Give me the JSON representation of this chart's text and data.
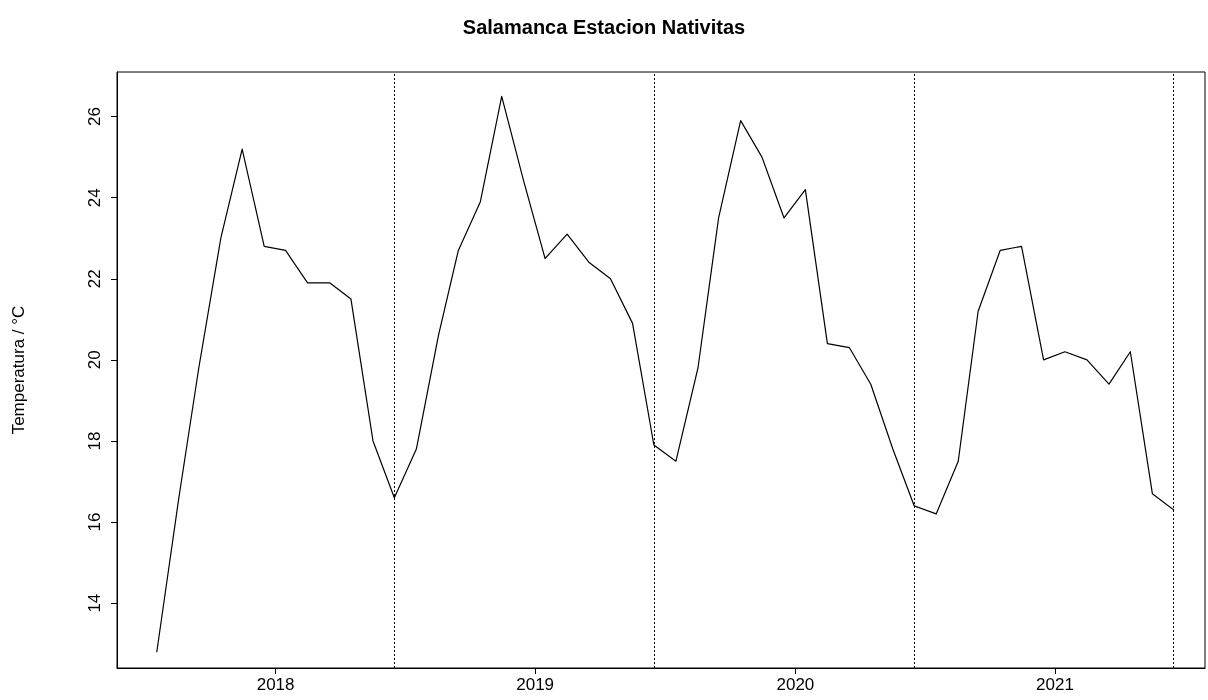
{
  "chart_data": {
    "type": "line",
    "title": "Salamanca Estacion Nativitas",
    "ylabel": "Temperatura / °C",
    "x": [
      "2018-01",
      "2018-02",
      "2018-03",
      "2018-04",
      "2018-05",
      "2018-06",
      "2018-07",
      "2018-08",
      "2018-09",
      "2018-10",
      "2018-11",
      "2018-12",
      "2019-01",
      "2019-02",
      "2019-03",
      "2019-04",
      "2019-05",
      "2019-06",
      "2019-07",
      "2019-08",
      "2019-09",
      "2019-10",
      "2019-11",
      "2019-12",
      "2020-01",
      "2020-02",
      "2020-03",
      "2020-04",
      "2020-05",
      "2020-06",
      "2020-07",
      "2020-08",
      "2020-09",
      "2020-10",
      "2020-11",
      "2020-12",
      "2021-01",
      "2021-02",
      "2021-03",
      "2021-04",
      "2021-05",
      "2021-06",
      "2021-07",
      "2021-08",
      "2021-09",
      "2021-10",
      "2021-11",
      "2021-12"
    ],
    "series": [
      {
        "color": "#000000",
        "values": [
          12.8,
          16.6,
          19.8,
          23.0,
          25.2,
          22.8,
          22.7,
          21.9,
          21.9,
          21.5,
          18.0,
          16.6,
          17.8,
          20.6,
          22.7,
          23.9,
          26.5,
          24.4,
          22.5,
          23.1,
          22.4,
          22.0,
          20.9,
          17.9,
          17.5,
          19.8,
          23.5,
          25.9,
          25.0,
          23.5,
          24.2,
          20.4,
          20.3,
          19.4,
          17.8,
          16.4,
          16.2,
          17.5,
          21.2,
          22.7,
          22.8,
          20.0,
          20.2,
          20.0,
          19.4,
          20.2,
          16.7,
          16.3
        ]
      }
    ],
    "xlim": [
      "2017-11-06",
      "2022-01-14"
    ],
    "xticks": [
      {
        "value": "2018-06-17",
        "label": "2018"
      },
      {
        "value": "2019-06-17",
        "label": "2019"
      },
      {
        "value": "2020-06-17",
        "label": "2020"
      },
      {
        "value": "2021-06-17",
        "label": "2021"
      }
    ],
    "ylim": [
      12.4,
      27.1
    ],
    "yticks": [
      14,
      16,
      18,
      20,
      22,
      24,
      26
    ],
    "ref_lines": [
      {
        "axis": "x",
        "value": "2018-12",
        "color": "#000000",
        "line_style": "dotted"
      },
      {
        "axis": "x",
        "value": "2019-12",
        "color": "#000000",
        "line_style": "dotted"
      },
      {
        "axis": "x",
        "value": "2020-12",
        "color": "#000000",
        "line_style": "dotted"
      },
      {
        "axis": "x",
        "value": "2021-12",
        "color": "#000000",
        "line_style": "dotted"
      }
    ],
    "grid": false,
    "marker": "none",
    "line_style": "solid"
  }
}
